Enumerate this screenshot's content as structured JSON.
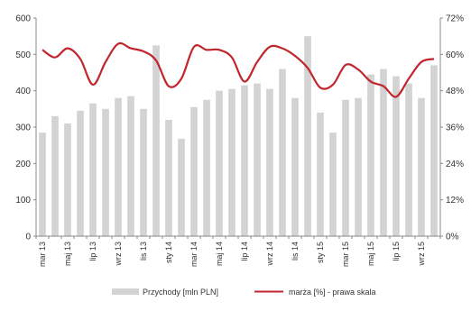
{
  "chart_data": {
    "type": "bar",
    "combo": "bar+line (secondary axis)",
    "x_tick_labels": [
      "mar 13",
      "maj 13",
      "lip 13",
      "wrz 13",
      "lis 13",
      "sty 14",
      "mar 14",
      "maj 14",
      "lip 14",
      "wrz 14",
      "lis 14",
      "sty 15",
      "mar 15",
      "maj 15",
      "lip 15",
      "wrz 15"
    ],
    "x_tick_every": 2,
    "categories": [
      "mar 13",
      "kwi 13",
      "maj 13",
      "cze 13",
      "lip 13",
      "sie 13",
      "wrz 13",
      "paź 13",
      "lis 13",
      "gru 13",
      "sty 14",
      "lut 14",
      "mar 14",
      "kwi 14",
      "maj 14",
      "cze 14",
      "lip 14",
      "sie 14",
      "wrz 14",
      "paź 14",
      "lis 14",
      "gru 14",
      "sty 15",
      "lut 15",
      "mar 15",
      "kwi 15",
      "maj 15",
      "cze 15",
      "lip 15",
      "sie 15",
      "wrz 15",
      "paź 15"
    ],
    "series": [
      {
        "name": "Przychody [mln PLN]",
        "kind": "bar",
        "axis": "left",
        "color": "#d3d3d3",
        "values": [
          285,
          330,
          310,
          345,
          365,
          350,
          380,
          385,
          350,
          525,
          320,
          268,
          355,
          375,
          400,
          405,
          415,
          420,
          405,
          460,
          380,
          550,
          340,
          285,
          375,
          380,
          445,
          460,
          440,
          420,
          380,
          470
        ]
      },
      {
        "name": "marża [%] - prawa skala",
        "kind": "line",
        "axis": "right",
        "color": "#c0262c",
        "values": [
          61.5,
          59,
          62,
          58.5,
          50,
          57.5,
          63.5,
          62,
          61,
          58,
          49.5,
          52,
          62.5,
          61.5,
          61.5,
          59,
          51,
          57.5,
          62.5,
          62,
          59.5,
          55.5,
          49,
          50,
          56.5,
          55,
          51,
          49.5,
          46,
          52,
          57.5,
          58.5
        ]
      }
    ],
    "y_left": {
      "ylim": [
        0,
        600
      ],
      "ticks": [
        "0",
        "100",
        "200",
        "300",
        "400",
        "500",
        "600"
      ]
    },
    "y_right": {
      "ylim": [
        0,
        72
      ],
      "ticks": [
        "0%",
        "12%",
        "24%",
        "36%",
        "48%",
        "60%",
        "72%"
      ]
    },
    "grid": false,
    "legend": {
      "position": "bottom",
      "entries": [
        "Przychody [mln PLN]",
        "marża [%] - prawa skala"
      ]
    },
    "colors": {
      "bar": "#d3d3d3",
      "line": "#c0262c",
      "axis": "#888888"
    }
  }
}
